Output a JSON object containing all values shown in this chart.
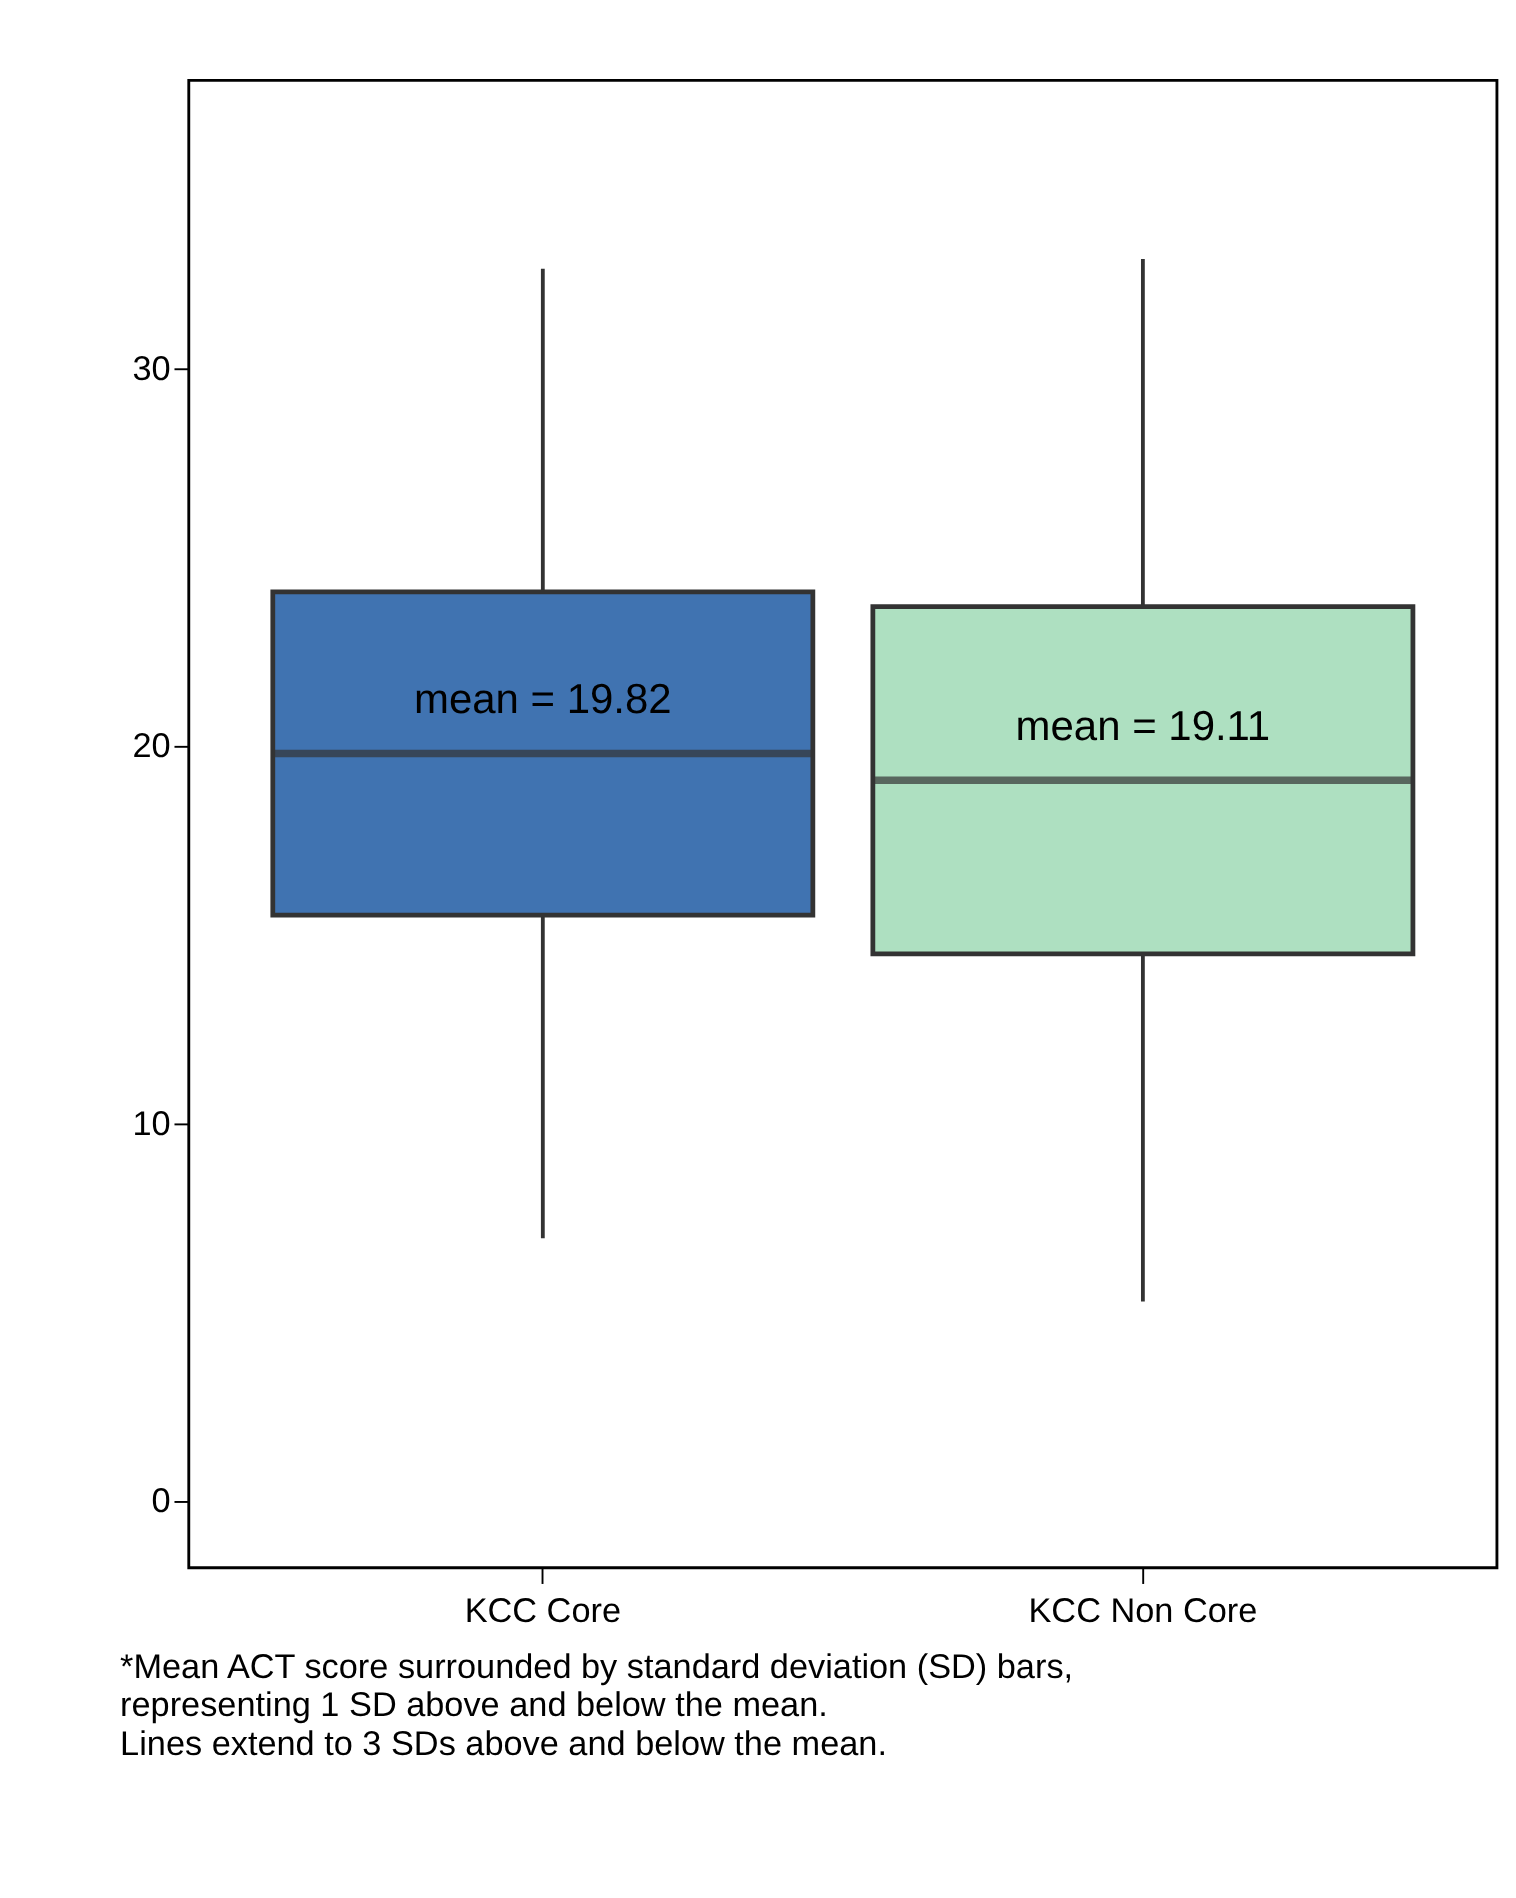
{
  "chart_data": {
    "type": "box",
    "categories": [
      "KCC Core",
      "KCC Non Core"
    ],
    "colors": [
      "#4073b1",
      "#aee0c1"
    ],
    "boxes": [
      {
        "low": 6.98,
        "q1": 15.54,
        "median": 19.82,
        "q3": 24.1,
        "high": 32.66
      },
      {
        "low": 5.3,
        "q1": 14.51,
        "median": 19.11,
        "q3": 23.71,
        "high": 32.92
      }
    ],
    "ylim": [
      -1.75,
      37.65
    ],
    "yticks": [
      0,
      10,
      20,
      30
    ],
    "grid": false,
    "annotations": [
      "mean = 19.82",
      "mean = 19.11",
      "*Mean ACT score surrounded by standard deviation (SD) bars,\n representing 1 SD above and below the mean.\n Lines extend to 3 SDs above and below the mean."
    ]
  }
}
